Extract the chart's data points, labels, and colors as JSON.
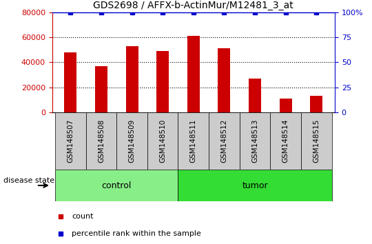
{
  "title": "GDS2698 / AFFX-b-ActinMur/M12481_3_at",
  "samples": [
    "GSM148507",
    "GSM148508",
    "GSM148509",
    "GSM148510",
    "GSM148511",
    "GSM148512",
    "GSM148513",
    "GSM148514",
    "GSM148515"
  ],
  "counts": [
    48000,
    37000,
    53000,
    49000,
    61000,
    51000,
    27000,
    11000,
    13000
  ],
  "groups": [
    {
      "label": "control",
      "indices": [
        0,
        1,
        2,
        3
      ],
      "color": "#88ee88"
    },
    {
      "label": "tumor",
      "indices": [
        4,
        5,
        6,
        7,
        8
      ],
      "color": "#33dd33"
    }
  ],
  "bar_color": "#cc0000",
  "dot_color": "#0000cc",
  "ylim_left": [
    0,
    80000
  ],
  "ylim_right": [
    0,
    100
  ],
  "yticks_left": [
    0,
    20000,
    40000,
    60000,
    80000
  ],
  "yticks_right": [
    0,
    25,
    50,
    75,
    100
  ],
  "yticklabels_right": [
    "0",
    "25",
    "50",
    "75",
    "100%"
  ],
  "grid_values": [
    20000,
    40000,
    60000
  ],
  "left_axis_color": "#cc0000",
  "right_axis_color": "#0000cc",
  "legend_count_label": "count",
  "legend_pct_label": "percentile rank within the sample",
  "disease_state_label": "disease state",
  "bar_width": 0.4,
  "tick_area_color": "#cccccc",
  "top_border_color": "#0000cc",
  "figsize": [
    5.4,
    3.54
  ],
  "dpi": 100
}
